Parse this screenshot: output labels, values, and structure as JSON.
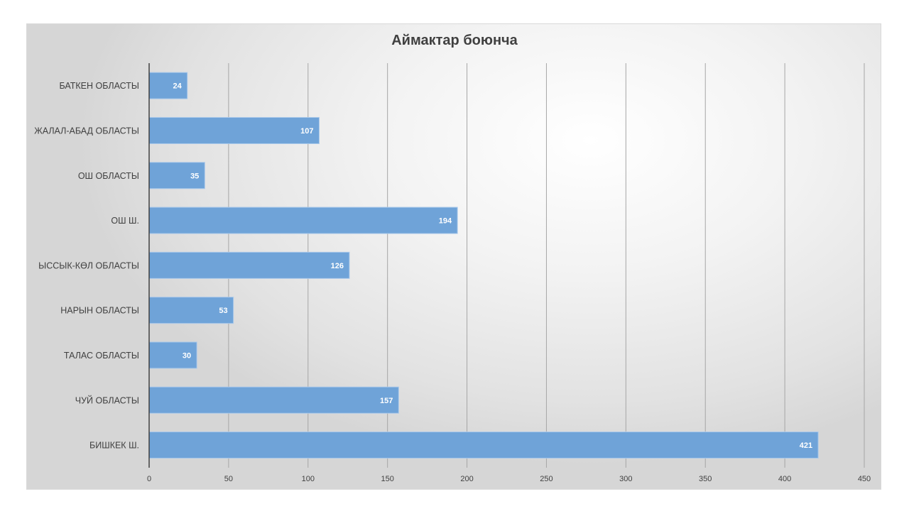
{
  "chart_data": {
    "type": "bar",
    "orientation": "horizontal",
    "title": "Аймактар боюнча",
    "categories": [
      "БАТКЕН ОБЛАСТЫ",
      "ЖАЛАЛ-АБАД ОБЛАСТЫ",
      "ОШ ОБЛАСТЫ",
      "ОШ Ш.",
      "ЫССЫК-КӨЛ ОБЛАСТЫ",
      "НАРЫН ОБЛАСТЫ",
      "ТАЛАС ОБЛАСТЫ",
      "ЧУЙ ОБЛАСТЫ",
      "БИШКЕК Ш."
    ],
    "values": [
      24,
      107,
      35,
      194,
      126,
      53,
      30,
      157,
      421
    ],
    "xlim": [
      0,
      450
    ],
    "xticks": [
      0,
      50,
      100,
      150,
      200,
      250,
      300,
      350,
      400,
      450
    ],
    "grid": true,
    "legend": "none",
    "data_labels": true,
    "colors": {
      "bar": "#6fa3d8",
      "bar_border": "#a9c8ea",
      "grid": "#a6a6a6",
      "axis": "#404040"
    }
  }
}
